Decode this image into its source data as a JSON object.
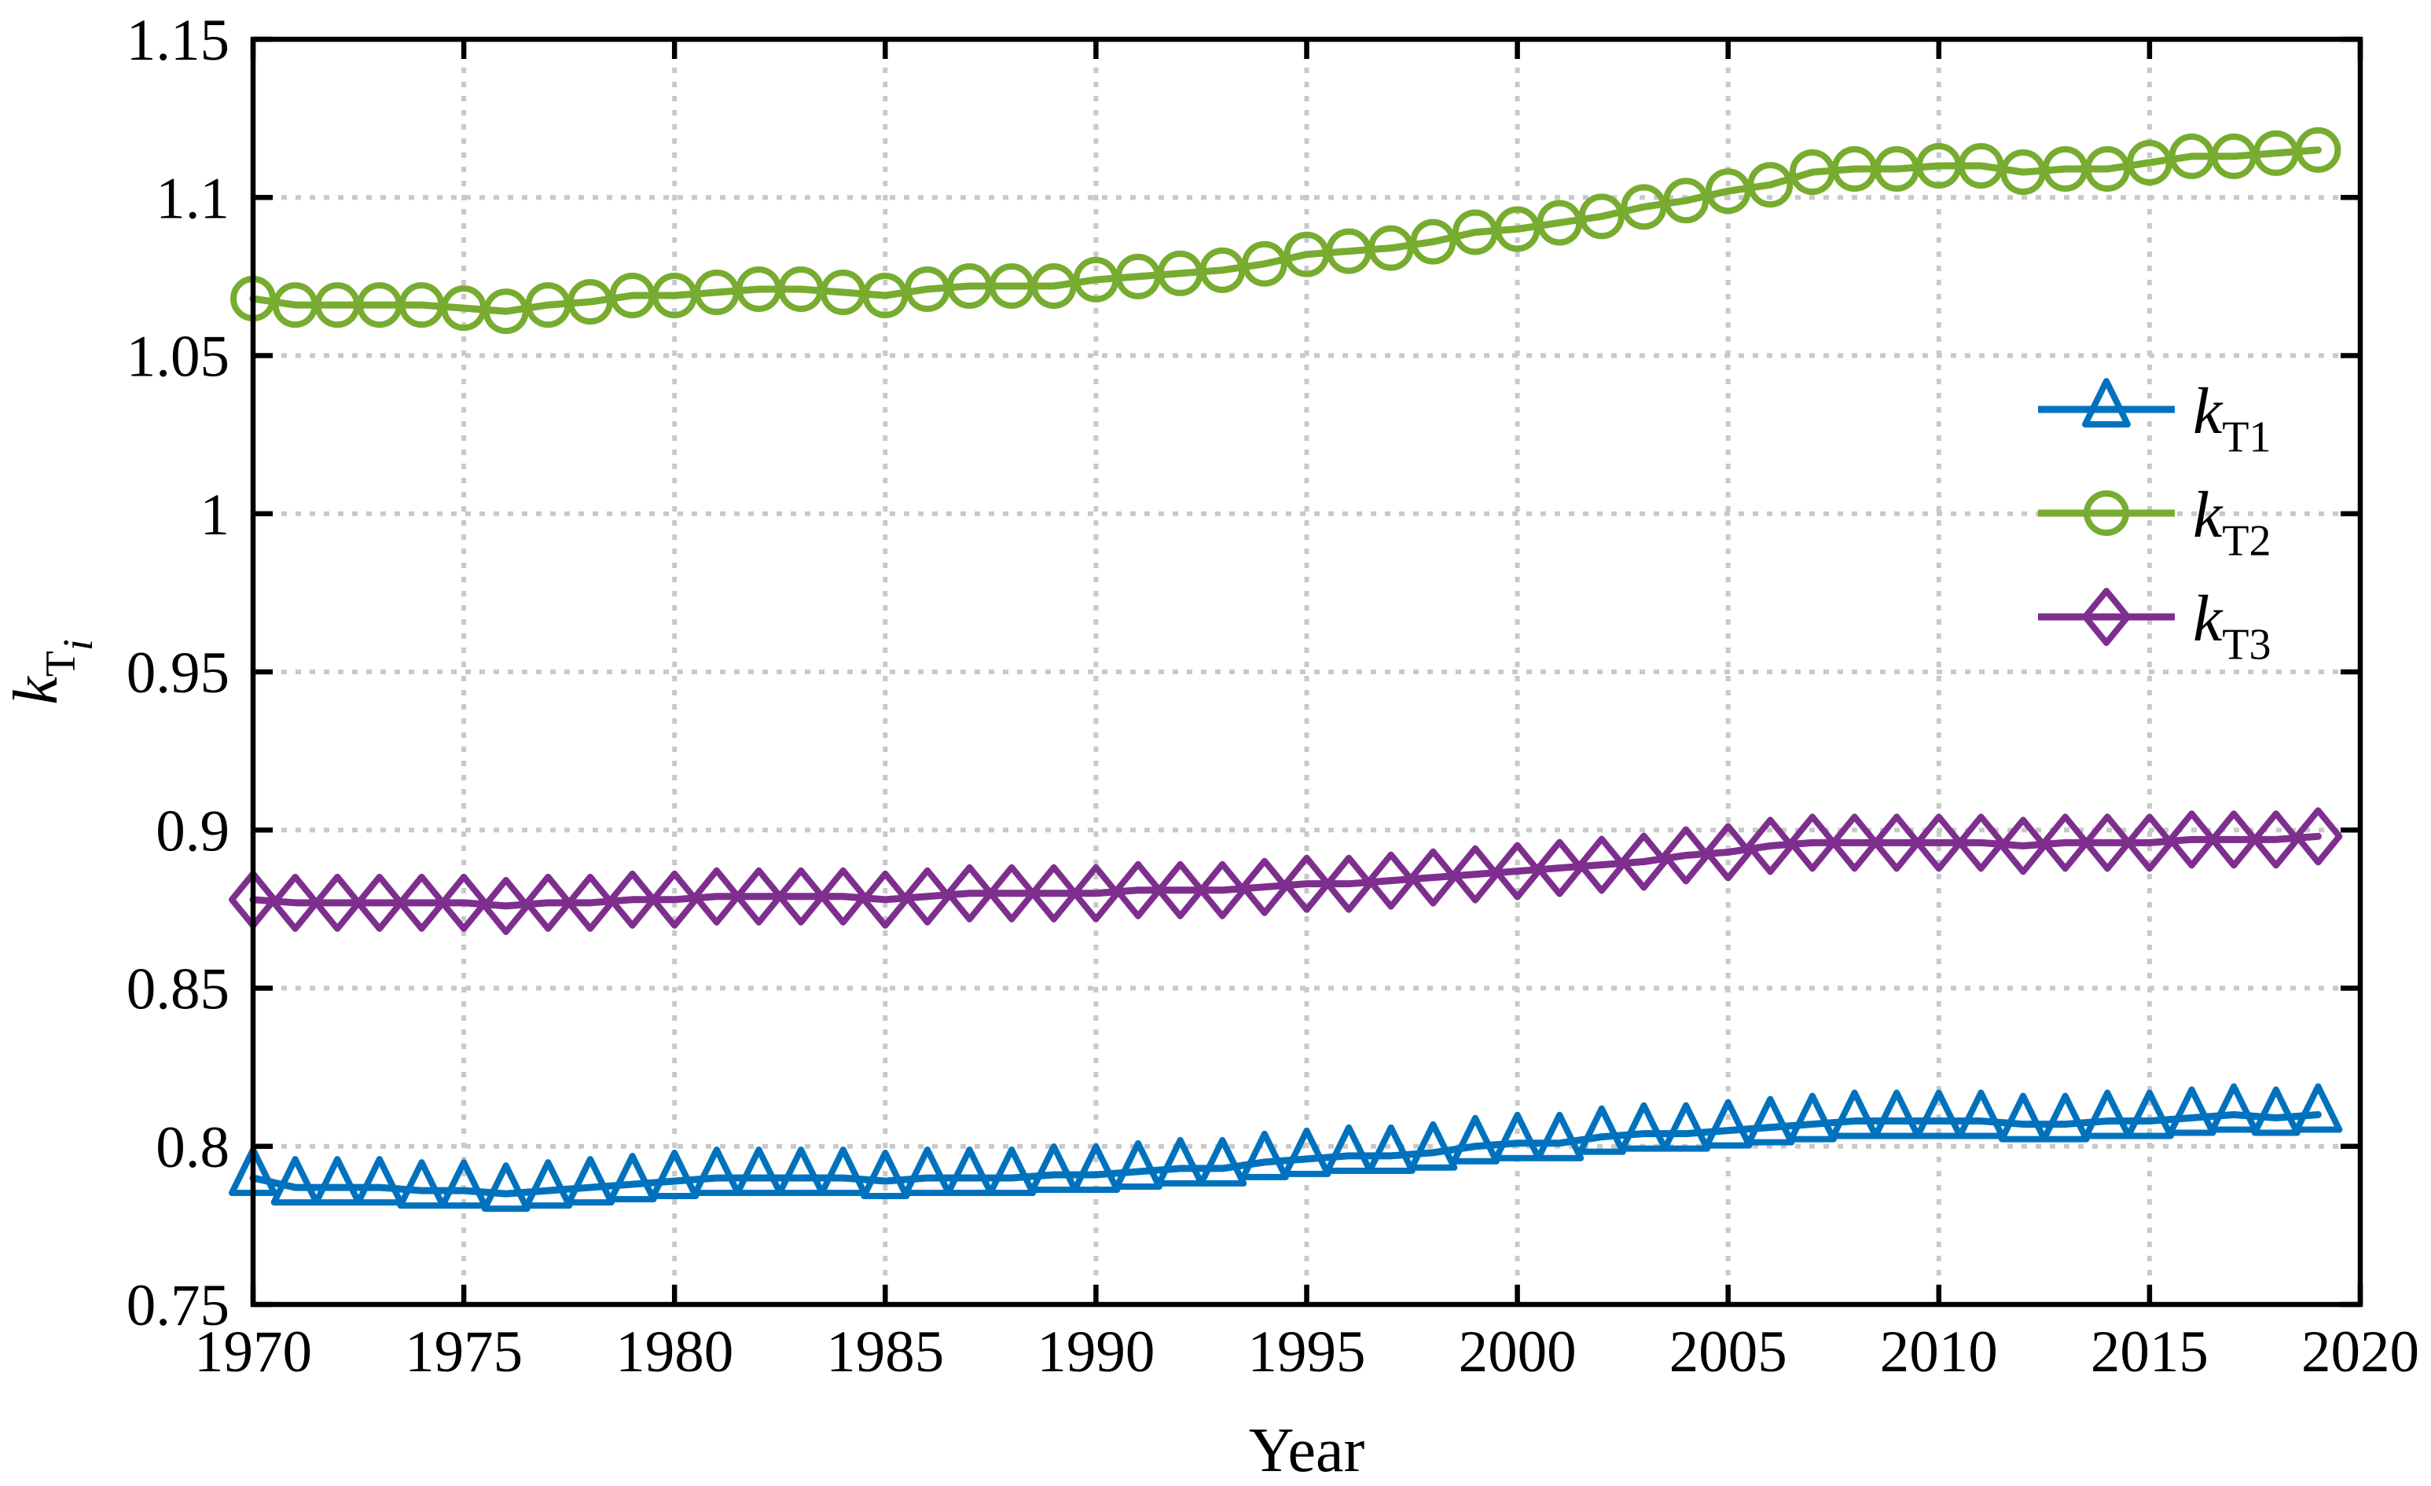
{
  "figure": {
    "background": "#ffffff",
    "axis_color": "#000000",
    "grid_color": "#c9c9c9",
    "xlabel": "Year",
    "ylabel_rich": [
      {
        "t": "k",
        "italic": true
      },
      {
        "t": "T",
        "sub": true
      },
      {
        "t": "i",
        "sub": true,
        "italic": true
      }
    ],
    "xlim": [
      1970,
      2020
    ],
    "ylim": [
      0.75,
      1.15
    ],
    "xticks": [
      1970,
      1975,
      1980,
      1985,
      1990,
      1995,
      2000,
      2005,
      2010,
      2015,
      2020
    ],
    "xtick_labels": [
      "1970",
      "1975",
      "1980",
      "1985",
      "1990",
      "1995",
      "2000",
      "2005",
      "2010",
      "2015",
      "2020"
    ],
    "yticks": [
      0.75,
      0.8,
      0.85,
      0.9,
      0.95,
      1.0,
      1.05,
      1.1,
      1.15
    ],
    "ytick_labels": [
      "0.75",
      "0.8",
      "0.85",
      "0.9",
      "0.95",
      "1",
      "1.05",
      "1.1",
      "1.15"
    ]
  },
  "chart_data": {
    "type": "line",
    "grid": "on",
    "legend_position": "right-middle",
    "x": [
      1970,
      1971,
      1972,
      1973,
      1974,
      1975,
      1976,
      1977,
      1978,
      1979,
      1980,
      1981,
      1982,
      1983,
      1984,
      1985,
      1986,
      1987,
      1988,
      1989,
      1990,
      1991,
      1992,
      1993,
      1994,
      1995,
      1996,
      1997,
      1998,
      1999,
      2000,
      2001,
      2002,
      2003,
      2004,
      2005,
      2006,
      2007,
      2008,
      2009,
      2010,
      2011,
      2012,
      2013,
      2014,
      2015,
      2016,
      2017,
      2018,
      2019
    ],
    "series": [
      {
        "name": "kT1",
        "label_rich": [
          {
            "t": "k",
            "italic": true
          },
          {
            "t": "T1",
            "sub": true
          }
        ],
        "color": "#0072BD",
        "marker": "triangle",
        "values": [
          0.79,
          0.787,
          0.787,
          0.787,
          0.786,
          0.786,
          0.785,
          0.786,
          0.787,
          0.788,
          0.789,
          0.79,
          0.79,
          0.79,
          0.79,
          0.789,
          0.79,
          0.79,
          0.79,
          0.791,
          0.791,
          0.792,
          0.793,
          0.793,
          0.795,
          0.796,
          0.797,
          0.797,
          0.798,
          0.8,
          0.801,
          0.801,
          0.803,
          0.804,
          0.804,
          0.805,
          0.806,
          0.807,
          0.808,
          0.808,
          0.808,
          0.808,
          0.807,
          0.807,
          0.808,
          0.808,
          0.809,
          0.81,
          0.809,
          0.81
        ]
      },
      {
        "name": "kT2",
        "label_rich": [
          {
            "t": "k",
            "italic": true
          },
          {
            "t": "T2",
            "sub": true
          }
        ],
        "color": "#77AC30",
        "marker": "circle",
        "values": [
          1.068,
          1.066,
          1.066,
          1.066,
          1.066,
          1.065,
          1.064,
          1.066,
          1.067,
          1.069,
          1.069,
          1.07,
          1.071,
          1.071,
          1.07,
          1.069,
          1.071,
          1.072,
          1.072,
          1.072,
          1.074,
          1.075,
          1.076,
          1.077,
          1.079,
          1.082,
          1.083,
          1.084,
          1.086,
          1.089,
          1.09,
          1.092,
          1.094,
          1.097,
          1.099,
          1.102,
          1.104,
          1.108,
          1.109,
          1.109,
          1.11,
          1.11,
          1.108,
          1.109,
          1.109,
          1.111,
          1.113,
          1.113,
          1.114,
          1.115
        ]
      },
      {
        "name": "kT3",
        "label_rich": [
          {
            "t": "k",
            "italic": true
          },
          {
            "t": "T3",
            "sub": true
          }
        ],
        "color": "#7E2F8E",
        "marker": "diamond",
        "values": [
          0.878,
          0.877,
          0.877,
          0.877,
          0.877,
          0.877,
          0.876,
          0.877,
          0.877,
          0.878,
          0.878,
          0.879,
          0.879,
          0.879,
          0.879,
          0.878,
          0.879,
          0.88,
          0.88,
          0.88,
          0.88,
          0.881,
          0.881,
          0.881,
          0.882,
          0.883,
          0.883,
          0.884,
          0.885,
          0.886,
          0.887,
          0.888,
          0.889,
          0.89,
          0.892,
          0.893,
          0.895,
          0.896,
          0.896,
          0.896,
          0.896,
          0.896,
          0.895,
          0.896,
          0.896,
          0.896,
          0.897,
          0.897,
          0.897,
          0.898
        ]
      }
    ]
  }
}
